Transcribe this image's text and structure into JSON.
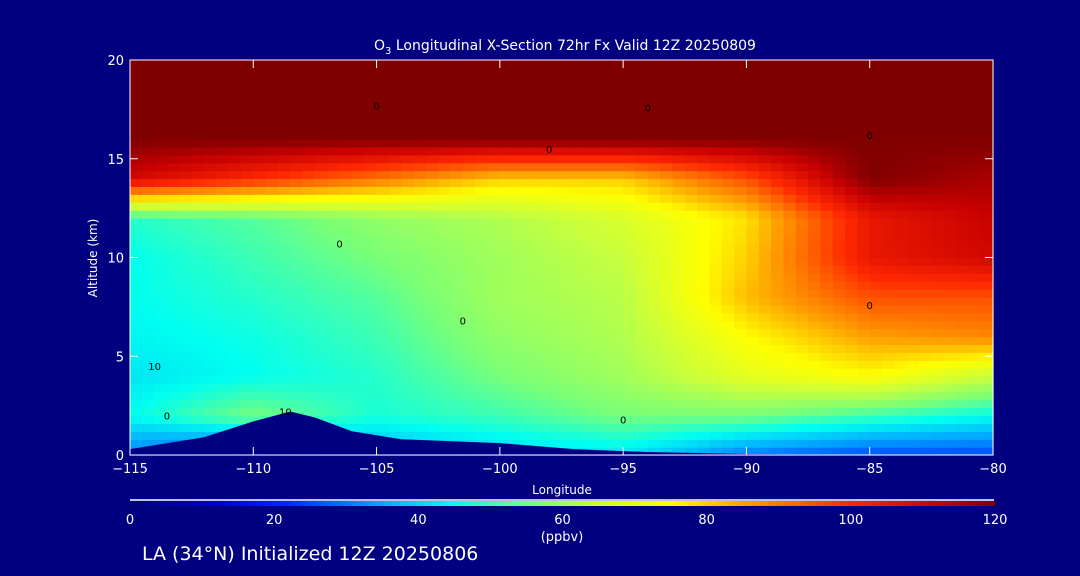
{
  "chart_data": {
    "type": "heatmap",
    "title": "O3 Longitudinal X-Section 72hr  Fx Valid 12Z 20250809",
    "title_prefix": "O",
    "title_sub": "3",
    "title_rest": " Longitudinal X-Section 72hr  Fx Valid 12Z 20250809",
    "xlabel": "Longitude",
    "ylabel": "Altitude (km)",
    "xlim": [
      -115,
      -80
    ],
    "ylim": [
      0,
      20
    ],
    "xticks": [
      -115,
      -110,
      -105,
      -100,
      -95,
      -90,
      -85,
      -80
    ],
    "xtick_labels": [
      "−115",
      "−110",
      "−105",
      "−100",
      "−95",
      "−90",
      "−85",
      "−80"
    ],
    "yticks": [
      0,
      5,
      10,
      15,
      20
    ],
    "ytick_labels": [
      "0",
      "5",
      "10",
      "15",
      "20"
    ],
    "grid_lon": [
      -115,
      -110,
      -105,
      -100,
      -95,
      -90,
      -85,
      -80
    ],
    "grid_alt": [
      0,
      2,
      4,
      6,
      8,
      10,
      12,
      14,
      16,
      18,
      20
    ],
    "values": [
      [
        30,
        20,
        35,
        40,
        42,
        30,
        25,
        25
      ],
      [
        45,
        55,
        47,
        50,
        55,
        55,
        50,
        45
      ],
      [
        42,
        45,
        48,
        55,
        60,
        70,
        75,
        65
      ],
      [
        44,
        46,
        50,
        58,
        62,
        75,
        85,
        88
      ],
      [
        45,
        48,
        52,
        60,
        63,
        82,
        95,
        95
      ],
      [
        45,
        50,
        55,
        60,
        65,
        80,
        105,
        110
      ],
      [
        48,
        52,
        58,
        62,
        68,
        78,
        105,
        112
      ],
      [
        110,
        100,
        90,
        80,
        80,
        95,
        120,
        115
      ],
      [
        120,
        120,
        120,
        120,
        120,
        120,
        120,
        120
      ],
      [
        120,
        120,
        120,
        120,
        120,
        120,
        120,
        120
      ],
      [
        120,
        120,
        120,
        120,
        120,
        120,
        120,
        120
      ]
    ],
    "terrain": [
      [
        -115,
        0.3
      ],
      [
        -112,
        0.9
      ],
      [
        -110,
        1.7
      ],
      [
        -108.5,
        2.2
      ],
      [
        -107.5,
        1.9
      ],
      [
        -106,
        1.2
      ],
      [
        -104,
        0.8
      ],
      [
        -100,
        0.6
      ],
      [
        -97,
        0.3
      ],
      [
        -94,
        0.15
      ],
      [
        -90,
        0.05
      ],
      [
        -80,
        0.0
      ]
    ],
    "contour_labels": [
      {
        "lon": -105,
        "alt": 17.7,
        "text": "0"
      },
      {
        "lon": -94,
        "alt": 17.6,
        "text": "0"
      },
      {
        "lon": -85,
        "alt": 16.2,
        "text": "0"
      },
      {
        "lon": -98,
        "alt": 15.5,
        "text": "0"
      },
      {
        "lon": -106.5,
        "alt": 10.7,
        "text": "0"
      },
      {
        "lon": -101.5,
        "alt": 6.8,
        "text": "0"
      },
      {
        "lon": -85,
        "alt": 7.6,
        "text": "0"
      },
      {
        "lon": -114,
        "alt": 4.5,
        "text": "10"
      },
      {
        "lon": -113.5,
        "alt": 2.0,
        "text": "0"
      },
      {
        "lon": -108.7,
        "alt": 2.2,
        "text": "10"
      },
      {
        "lon": -95,
        "alt": 1.8,
        "text": "0"
      }
    ],
    "colorbar": {
      "label": "(ppbv)",
      "range": [
        0,
        120
      ],
      "ticks": [
        "0",
        "20",
        "40",
        "60",
        "80",
        "100",
        "120"
      ]
    }
  },
  "footer": "LA (34°N) Initialized 12Z 20250806"
}
